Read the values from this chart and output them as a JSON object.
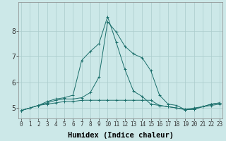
{
  "xlabel": "Humidex (Indice chaleur)",
  "bg_color": "#cce8e8",
  "line_color": "#1a6e6a",
  "grid_color": "#aacccc",
  "x_values": [
    0,
    1,
    2,
    3,
    4,
    5,
    6,
    7,
    8,
    9,
    10,
    11,
    12,
    13,
    14,
    15,
    16,
    17,
    18,
    19,
    20,
    21,
    22,
    23
  ],
  "series1": [
    4.9,
    5.0,
    5.1,
    5.15,
    5.2,
    5.25,
    5.25,
    5.3,
    5.3,
    5.3,
    5.3,
    5.3,
    5.3,
    5.3,
    5.3,
    5.3,
    5.1,
    5.05,
    5.0,
    4.95,
    5.0,
    5.05,
    5.1,
    5.15
  ],
  "series2": [
    4.9,
    5.0,
    5.1,
    5.2,
    5.3,
    5.35,
    5.35,
    5.4,
    5.6,
    6.2,
    8.35,
    7.95,
    7.4,
    7.1,
    6.95,
    6.45,
    5.5,
    5.15,
    5.1,
    4.93,
    4.95,
    5.05,
    5.15,
    5.2
  ],
  "series3": [
    4.9,
    5.0,
    5.1,
    5.25,
    5.35,
    5.4,
    5.5,
    6.85,
    7.2,
    7.5,
    8.55,
    7.55,
    6.5,
    5.65,
    5.45,
    5.15,
    5.1,
    5.05,
    5.0,
    4.93,
    4.95,
    5.05,
    5.15,
    5.2
  ],
  "ylim": [
    4.6,
    9.1
  ],
  "yticks": [
    5,
    6,
    7,
    8
  ],
  "xticks": [
    0,
    1,
    2,
    3,
    4,
    5,
    6,
    7,
    8,
    9,
    10,
    11,
    12,
    13,
    14,
    15,
    16,
    17,
    18,
    19,
    20,
    21,
    22,
    23
  ],
  "xlim": [
    -0.3,
    23.3
  ],
  "xlabel_fontsize": 7.5,
  "tick_fontsize_x": 5.5,
  "tick_fontsize_y": 7.0
}
